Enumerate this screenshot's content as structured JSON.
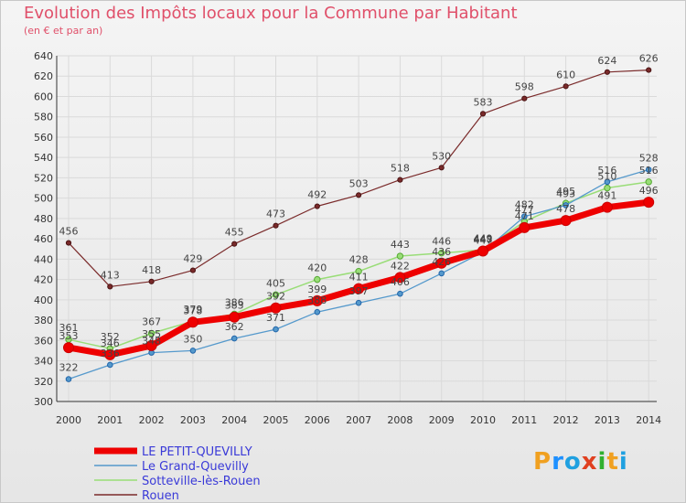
{
  "title": "Evolution des Impôts locaux pour la Commune par Habitant",
  "subtitle": "(en € et par an)",
  "brand": {
    "text": "Proxiti",
    "letters": [
      "P",
      "r",
      "o",
      "x",
      "i",
      "t",
      "i"
    ],
    "colors": [
      "#f0a020",
      "#1e90ff",
      "#20a0e0",
      "#e04020",
      "#30b030",
      "#f0a020",
      "#20a0e0"
    ]
  },
  "chart_data": {
    "type": "line",
    "title": "Evolution des Impôts locaux pour la Commune par Habitant",
    "ylabel": "(en € et par an)",
    "ylim": [
      300,
      640
    ],
    "yticks": [
      300,
      320,
      340,
      360,
      380,
      400,
      420,
      440,
      460,
      480,
      500,
      520,
      540,
      560,
      580,
      600,
      620,
      640
    ],
    "categories": [
      "2000",
      "2001",
      "2002",
      "2003",
      "2004",
      "2005",
      "2006",
      "2007",
      "2008",
      "2009",
      "2010",
      "2011",
      "2012",
      "2013",
      "2014"
    ],
    "series": [
      {
        "name": "Rouen",
        "color": "#7a2a2a",
        "width": 1.2,
        "marker": 2.6,
        "values": [
          456,
          413,
          418,
          429,
          455,
          473,
          492,
          503,
          518,
          530,
          583,
          598,
          610,
          624,
          626
        ],
        "labels": [
          "456",
          "413",
          "418",
          "429",
          "455",
          "473",
          "492",
          "503",
          "518",
          "530",
          "583",
          "598",
          "610",
          "624",
          "626"
        ]
      },
      {
        "name": "Sotteville-lès-Rouen",
        "color": "#99dd77",
        "width": 1.5,
        "marker": 3.2,
        "values": [
          361,
          352,
          367,
          379,
          386,
          405,
          420,
          428,
          443,
          446,
          449,
          477,
          495,
          510,
          516
        ],
        "labels": [
          "361",
          "352",
          "367",
          "379",
          "386",
          "405",
          "420",
          "428",
          "443",
          "446",
          "449",
          "477",
          "495",
          "510",
          "516"
        ]
      },
      {
        "name": "Le Grand-Quevilly",
        "color": "#5599cc",
        "width": 1.3,
        "marker": 2.8,
        "values": [
          322,
          336,
          348,
          350,
          362,
          371,
          388,
          397,
          406,
          426,
          447,
          482,
          493,
          516,
          528
        ],
        "labels": [
          "322",
          "336",
          "348",
          "350",
          "362",
          "371",
          "388",
          "397",
          "406",
          "426",
          "447",
          "482",
          "493",
          "516",
          "528"
        ]
      },
      {
        "name": "LE PETIT-QUEVILLY",
        "color": "#ee0000",
        "width": 7,
        "marker": 5.5,
        "values": [
          353,
          346,
          355,
          378,
          383,
          392,
          399,
          411,
          422,
          436,
          448,
          471,
          478,
          491,
          496
        ],
        "labels": [
          "353",
          "346",
          "355",
          "378",
          "383",
          "392",
          "399",
          "411",
          "422",
          "436",
          "448",
          "471",
          "478",
          "491",
          "496"
        ]
      }
    ],
    "legend": [
      {
        "name": "LE PETIT-QUEVILLY",
        "color": "#ee0000",
        "width": 7
      },
      {
        "name": "Le Grand-Quevilly",
        "color": "#5599cc",
        "width": 1.5
      },
      {
        "name": "Sotteville-lès-Rouen",
        "color": "#99dd77",
        "width": 1.5
      },
      {
        "name": "Rouen",
        "color": "#7a2a2a",
        "width": 1.5
      }
    ]
  }
}
